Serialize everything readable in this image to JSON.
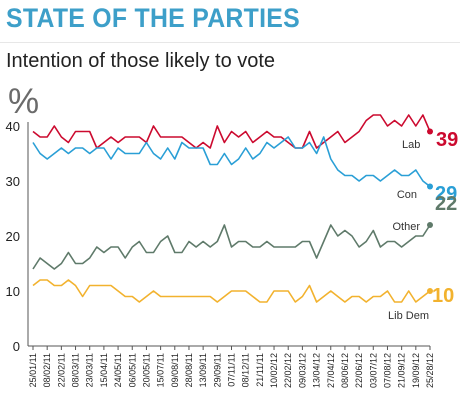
{
  "title": "STATE OF THE PARTIES",
  "subtitle": "Intention of those likely to vote",
  "unit": "%",
  "chart_data": {
    "type": "line",
    "title": "STATE OF THE PARTIES",
    "subtitle": "Intention of those likely to vote",
    "ylabel": "%",
    "ylim": [
      0,
      40
    ],
    "yticks": [
      0,
      10,
      20,
      30,
      40
    ],
    "grid": false,
    "x_tick_labels": [
      "25/01/11",
      "08/02/11",
      "22/02/11",
      "08/03/11",
      "23/03/11",
      "15/04/11",
      "24/05/11",
      "06/05/11",
      "20/05/11",
      "15/07/11",
      "09/08/11",
      "28/08/11",
      "13/09/11",
      "29/09/11",
      "07/11/11",
      "08/12/11",
      "21/11/11",
      "10/02/12",
      "22/02/12",
      "09/03/12",
      "13/04/12",
      "27/04/12",
      "08/06/12",
      "22/06/12",
      "03/07/12",
      "07/08/12",
      "21/09/12",
      "19/09/12",
      "25/28/12"
    ],
    "series": [
      {
        "name": "Lab",
        "color": "#cc0a2f",
        "end_label": "39",
        "values": [
          39,
          38,
          38,
          40,
          38,
          37,
          39,
          39,
          39,
          36,
          37,
          38,
          37,
          38,
          38,
          38,
          37,
          40,
          38,
          38,
          38,
          38,
          37,
          36,
          37,
          36,
          40,
          37,
          39,
          38,
          39,
          37,
          38,
          39,
          38,
          38,
          37,
          36,
          36,
          39,
          36,
          37,
          38,
          39,
          37,
          38,
          39,
          41,
          42,
          42,
          40,
          41,
          40,
          42,
          40,
          42,
          39
        ]
      },
      {
        "name": "Con",
        "color": "#2a9fd6",
        "end_label": "29",
        "values": [
          37,
          35,
          34,
          35,
          36,
          35,
          36,
          36,
          35,
          36,
          36,
          34,
          36,
          35,
          35,
          35,
          37,
          35,
          34,
          36,
          34,
          37,
          36,
          36,
          36,
          33,
          33,
          35,
          33,
          34,
          36,
          34,
          35,
          37,
          36,
          37,
          38,
          36,
          36,
          37,
          35,
          38,
          34,
          32,
          31,
          31,
          30,
          31,
          31,
          30,
          31,
          32,
          31,
          31,
          32,
          30,
          29
        ]
      },
      {
        "name": "Other",
        "color": "#5f7a6a",
        "end_label": "22",
        "values": [
          14,
          16,
          15,
          14,
          15,
          17,
          15,
          15,
          16,
          18,
          17,
          18,
          18,
          16,
          18,
          19,
          17,
          17,
          19,
          20,
          17,
          17,
          19,
          18,
          19,
          18,
          19,
          22,
          18,
          19,
          19,
          18,
          18,
          19,
          18,
          18,
          18,
          18,
          19,
          19,
          16,
          19,
          22,
          20,
          21,
          20,
          18,
          19,
          21,
          18,
          19,
          19,
          18,
          19,
          20,
          20,
          22
        ]
      },
      {
        "name": "Lib Dem",
        "color": "#f2b22e",
        "end_label": "10",
        "values": [
          11,
          12,
          12,
          11,
          11,
          12,
          11,
          9,
          11,
          11,
          11,
          11,
          10,
          9,
          9,
          8,
          9,
          10,
          9,
          9,
          9,
          9,
          9,
          9,
          9,
          9,
          8,
          9,
          10,
          10,
          10,
          9,
          8,
          8,
          10,
          10,
          10,
          8,
          9,
          11,
          8,
          9,
          10,
          9,
          8,
          9,
          9,
          8,
          9,
          9,
          10,
          8,
          8,
          10,
          8,
          9,
          10
        ]
      }
    ]
  }
}
